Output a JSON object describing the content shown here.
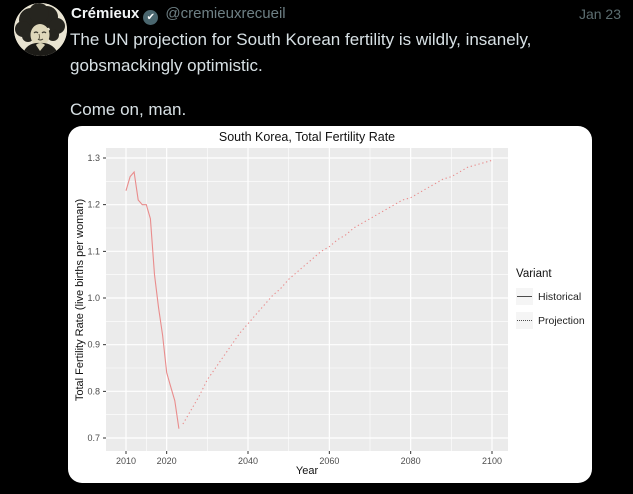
{
  "tweet": {
    "display_name": "Crémieux",
    "handle": "@cremieuxrecueil",
    "timestamp": "Jan 23",
    "body": "The UN projection for South Korean fertility is wildly, insanely, gobsmackingly optimistic.",
    "body2": "Come on, man.",
    "verified_check": "✔"
  },
  "colors": {
    "page_background": "#000000",
    "body_text": "#d7e0e4",
    "secondary_text": "#6e8085",
    "verified_badge": "#4a666e",
    "card_background": "#ffffff",
    "panel_background": "#ebebeb",
    "gridline": "#ffffff",
    "axis_text": "#4d4d4d",
    "line_color": "#e98c8c",
    "legend_key_color": "#4d4d4d"
  },
  "chart_data": {
    "type": "line",
    "title": "South Korea, Total Fertility Rate",
    "xlabel": "Year",
    "ylabel": "Total Fertility Rate (live births per woman)",
    "x_ticks": [
      2010,
      2020,
      2040,
      2060,
      2080,
      2100
    ],
    "y_ticks": [
      0.7,
      0.8,
      0.9,
      1.0,
      1.1,
      1.2,
      1.3
    ],
    "xlim": [
      2005,
      2104
    ],
    "ylim": [
      0.67,
      1.32
    ],
    "grid": "on",
    "legend": {
      "title": "Variant",
      "position": "right",
      "entries": [
        {
          "label": "Historical",
          "linetype": "solid"
        },
        {
          "label": "Projection",
          "linetype": "dotted"
        }
      ]
    },
    "series": [
      {
        "name": "Historical",
        "linetype": "solid",
        "points": [
          [
            2010,
            1.23
          ],
          [
            2011,
            1.26
          ],
          [
            2012,
            1.27
          ],
          [
            2013,
            1.21
          ],
          [
            2014,
            1.2
          ],
          [
            2015,
            1.2
          ],
          [
            2016,
            1.17
          ],
          [
            2017,
            1.05
          ],
          [
            2018,
            0.98
          ],
          [
            2019,
            0.92
          ],
          [
            2020,
            0.84
          ],
          [
            2021,
            0.81
          ],
          [
            2022,
            0.78
          ],
          [
            2023,
            0.72
          ]
        ]
      },
      {
        "name": "Projection",
        "linetype": "dotted",
        "points": [
          [
            2024,
            0.73
          ],
          [
            2026,
            0.76
          ],
          [
            2028,
            0.79
          ],
          [
            2030,
            0.825
          ],
          [
            2032,
            0.85
          ],
          [
            2034,
            0.875
          ],
          [
            2036,
            0.9
          ],
          [
            2038,
            0.925
          ],
          [
            2040,
            0.945
          ],
          [
            2042,
            0.965
          ],
          [
            2044,
            0.985
          ],
          [
            2046,
            1.005
          ],
          [
            2048,
            1.02
          ],
          [
            2050,
            1.04
          ],
          [
            2052,
            1.055
          ],
          [
            2054,
            1.07
          ],
          [
            2056,
            1.085
          ],
          [
            2058,
            1.1
          ],
          [
            2060,
            1.11
          ],
          [
            2062,
            1.125
          ],
          [
            2064,
            1.135
          ],
          [
            2066,
            1.15
          ],
          [
            2068,
            1.16
          ],
          [
            2070,
            1.17
          ],
          [
            2072,
            1.18
          ],
          [
            2074,
            1.19
          ],
          [
            2076,
            1.2
          ],
          [
            2078,
            1.21
          ],
          [
            2080,
            1.215
          ],
          [
            2082,
            1.225
          ],
          [
            2084,
            1.235
          ],
          [
            2086,
            1.245
          ],
          [
            2088,
            1.255
          ],
          [
            2090,
            1.26
          ],
          [
            2092,
            1.27
          ],
          [
            2094,
            1.28
          ],
          [
            2096,
            1.285
          ],
          [
            2098,
            1.29
          ],
          [
            2100,
            1.295
          ]
        ]
      }
    ]
  }
}
